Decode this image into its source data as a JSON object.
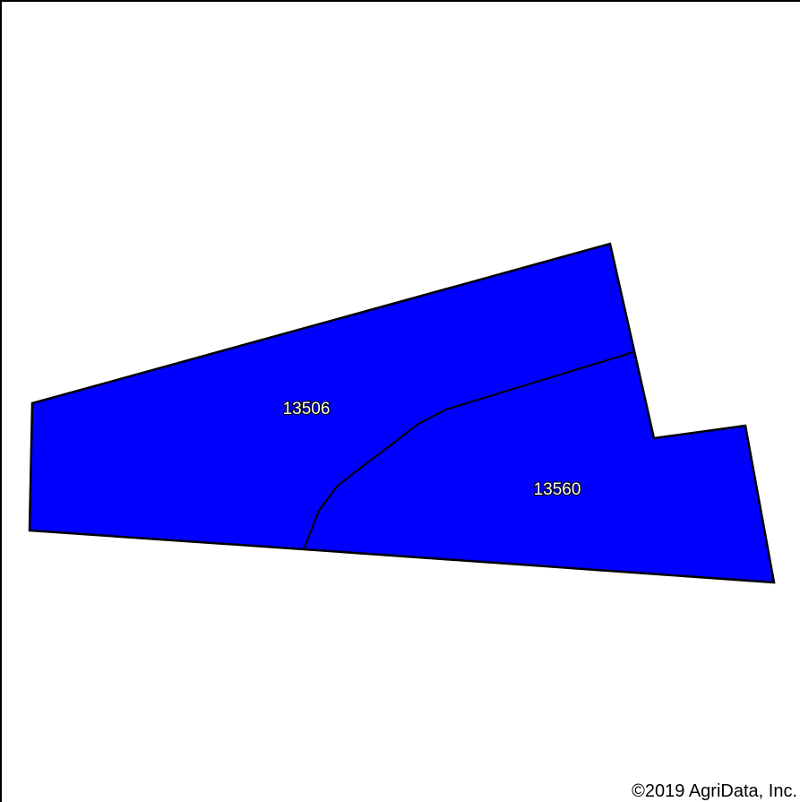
{
  "map": {
    "fill_color": "#0000ff",
    "outline_color": "#000000",
    "background_color": "#ffffff",
    "soil_units": [
      {
        "label": "13506"
      },
      {
        "label": "13560"
      }
    ],
    "copyright": "©2019 AgriData, Inc."
  }
}
